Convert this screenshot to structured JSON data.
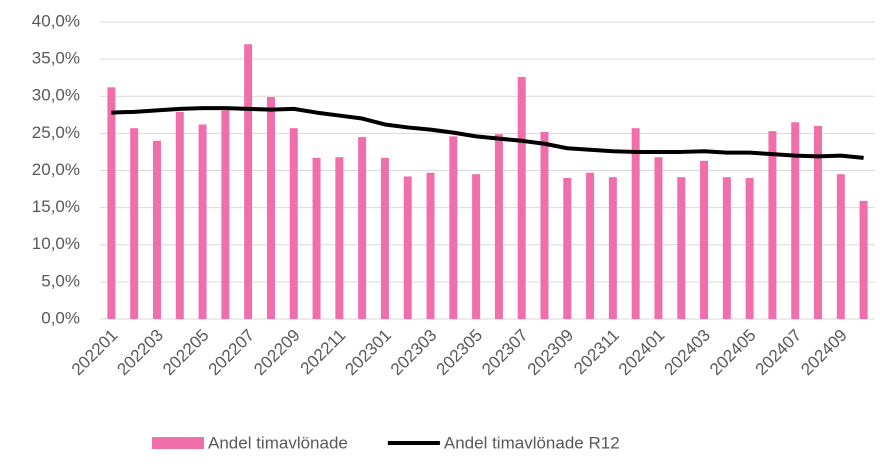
{
  "chart_data": {
    "type": "bar_line",
    "categories": [
      "202201",
      null,
      "202203",
      null,
      "202205",
      null,
      "202207",
      null,
      "202209",
      null,
      "202211",
      null,
      "202301",
      null,
      "202303",
      null,
      "202305",
      null,
      "202307",
      null,
      "202309",
      null,
      "202311",
      null,
      "202401",
      null,
      "202403",
      null,
      "202405",
      null,
      "202407",
      null,
      "202409",
      null
    ],
    "series": [
      {
        "name": "Andel timavlönade",
        "type": "bar",
        "color": "#f06eaa",
        "values": [
          31.2,
          25.7,
          24.0,
          27.9,
          26.2,
          28.1,
          37.0,
          29.9,
          25.7,
          21.7,
          21.8,
          24.5,
          21.7,
          19.2,
          19.7,
          24.6,
          19.5,
          24.9,
          32.6,
          25.2,
          19.0,
          19.7,
          19.1,
          25.7,
          21.8,
          19.1,
          21.3,
          19.1,
          19.0,
          25.3,
          26.5,
          26.0,
          19.5,
          15.9
        ]
      },
      {
        "name": "Andel timavlönade R12",
        "type": "line",
        "color": "#000000",
        "values": [
          27.8,
          27.9,
          28.1,
          28.3,
          28.4,
          28.4,
          28.3,
          28.2,
          28.3,
          27.8,
          27.4,
          27.0,
          26.2,
          25.8,
          25.5,
          25.1,
          24.6,
          24.3,
          24.0,
          23.6,
          23.0,
          22.8,
          22.6,
          22.5,
          22.5,
          22.5,
          22.6,
          22.4,
          22.4,
          22.2,
          22.0,
          21.9,
          22.0,
          21.7
        ]
      }
    ],
    "ylim": [
      0,
      40
    ],
    "yticks": [
      {
        "value": 0,
        "label": "0,0%"
      },
      {
        "value": 5,
        "label": "5,0%"
      },
      {
        "value": 10,
        "label": "10,0%"
      },
      {
        "value": 15,
        "label": "15,0%"
      },
      {
        "value": 20,
        "label": "20,0%"
      },
      {
        "value": 25,
        "label": "25,0%"
      },
      {
        "value": 30,
        "label": "30,0%"
      },
      {
        "value": 35,
        "label": "35,0%"
      },
      {
        "value": 40,
        "label": "40,0%"
      }
    ],
    "grid": true,
    "legend": "bottom"
  }
}
